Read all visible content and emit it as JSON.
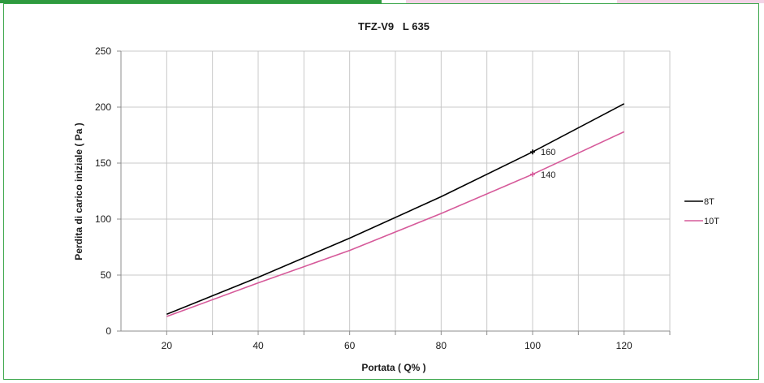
{
  "chart_data": {
    "type": "line",
    "title": "TFZ-V9   L 635",
    "xlabel": "Portata ( Q% )",
    "ylabel": "Perdita di carico iniziale ( Pa )",
    "xlim": [
      10,
      130
    ],
    "ylim": [
      0,
      250
    ],
    "xticks": [
      20,
      40,
      60,
      80,
      100,
      120
    ],
    "yticks": [
      0,
      50,
      100,
      150,
      200,
      250
    ],
    "grid": true,
    "legend_position": "right",
    "series": [
      {
        "name": "8T",
        "color": "#000000",
        "x": [
          20,
          40,
          60,
          80,
          100,
          120
        ],
        "y": [
          15,
          48,
          83,
          120,
          160,
          203
        ],
        "annotation": {
          "x": 100,
          "y": 160,
          "label": "160"
        }
      },
      {
        "name": "10T",
        "color": "#d65a9a",
        "x": [
          20,
          40,
          60,
          80,
          100,
          120
        ],
        "y": [
          13,
          43,
          72,
          105,
          140,
          178
        ],
        "annotation": {
          "x": 100,
          "y": 140,
          "label": "140"
        }
      }
    ]
  },
  "colors": {
    "frame_border": "#3aa64a",
    "grid": "#c8c8c8",
    "axis": "#8c8c8c",
    "strip_green": "#2f9a3f",
    "strip_pink": "#f3d3e6"
  }
}
